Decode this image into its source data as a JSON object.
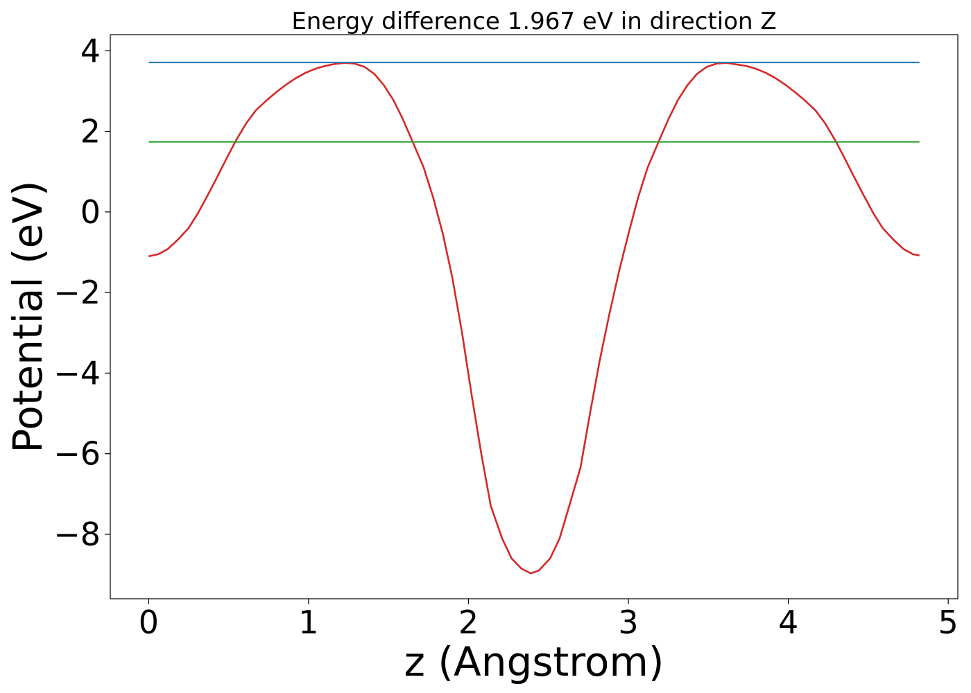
{
  "chart_data": {
    "type": "line",
    "title": "Energy difference 1.967 eV in direction Z",
    "xlabel": "z (Angstrom)",
    "ylabel": "Potential (eV)",
    "xlim": [
      -0.24,
      5.06
    ],
    "ylim": [
      -9.6,
      4.4
    ],
    "xticks": [
      0,
      1,
      2,
      3,
      4,
      5
    ],
    "xtick_labels": [
      "0",
      "1",
      "2",
      "3",
      "4",
      "5"
    ],
    "yticks": [
      4,
      2,
      0,
      -2,
      -4,
      -6,
      -8
    ],
    "ytick_labels": [
      "4",
      "2",
      "0",
      "−2",
      "−4",
      "−6",
      "−8"
    ],
    "grid": false,
    "series": [
      {
        "color": "#d62728",
        "x": [
          0.0,
          0.06,
          0.12,
          0.18,
          0.25,
          0.31,
          0.37,
          0.43,
          0.49,
          0.55,
          0.61,
          0.67,
          0.74,
          0.8,
          0.86,
          0.92,
          0.98,
          1.04,
          1.1,
          1.16,
          1.23,
          1.29,
          1.35,
          1.41,
          1.47,
          1.53,
          1.59,
          1.65,
          1.72,
          1.78,
          1.84,
          1.9,
          1.96,
          2.02,
          2.08,
          2.14,
          2.21,
          2.27,
          2.33,
          2.39,
          2.44,
          2.51,
          2.57,
          2.63,
          2.7,
          2.76,
          2.82,
          2.88,
          2.94,
          3.0,
          3.06,
          3.12,
          3.19,
          3.25,
          3.31,
          3.37,
          3.43,
          3.49,
          3.55,
          3.61,
          3.66,
          3.74,
          3.8,
          3.86,
          3.92,
          3.98,
          4.04,
          4.1,
          4.17,
          4.23,
          4.29,
          4.35,
          4.41,
          4.47,
          4.53,
          4.59,
          4.66,
          4.72,
          4.78,
          4.82
        ],
        "y": [
          -1.1,
          -1.05,
          -0.92,
          -0.7,
          -0.4,
          -0.02,
          0.42,
          0.88,
          1.35,
          1.8,
          2.2,
          2.52,
          2.78,
          2.98,
          3.16,
          3.32,
          3.45,
          3.55,
          3.62,
          3.67,
          3.7,
          3.68,
          3.6,
          3.43,
          3.15,
          2.78,
          2.3,
          1.75,
          1.1,
          0.35,
          -0.55,
          -1.65,
          -3.0,
          -4.55,
          -6.0,
          -7.3,
          -8.1,
          -8.6,
          -8.85,
          -8.97,
          -8.9,
          -8.6,
          -8.1,
          -7.3,
          -6.35,
          -5.0,
          -3.7,
          -2.55,
          -1.5,
          -0.55,
          0.35,
          1.1,
          1.75,
          2.3,
          2.78,
          3.15,
          3.43,
          3.6,
          3.68,
          3.7,
          3.67,
          3.62,
          3.55,
          3.45,
          3.32,
          3.16,
          2.98,
          2.78,
          2.52,
          2.2,
          1.8,
          1.35,
          0.88,
          0.42,
          -0.02,
          -0.4,
          -0.7,
          -0.92,
          -1.05,
          -1.08
        ]
      },
      {
        "color": "#1f77b4",
        "x": [
          0.0,
          4.82
        ],
        "y": [
          3.71,
          3.71
        ]
      },
      {
        "color": "#2ca02c",
        "x": [
          0.0,
          4.82
        ],
        "y": [
          1.74,
          1.74
        ]
      }
    ]
  }
}
